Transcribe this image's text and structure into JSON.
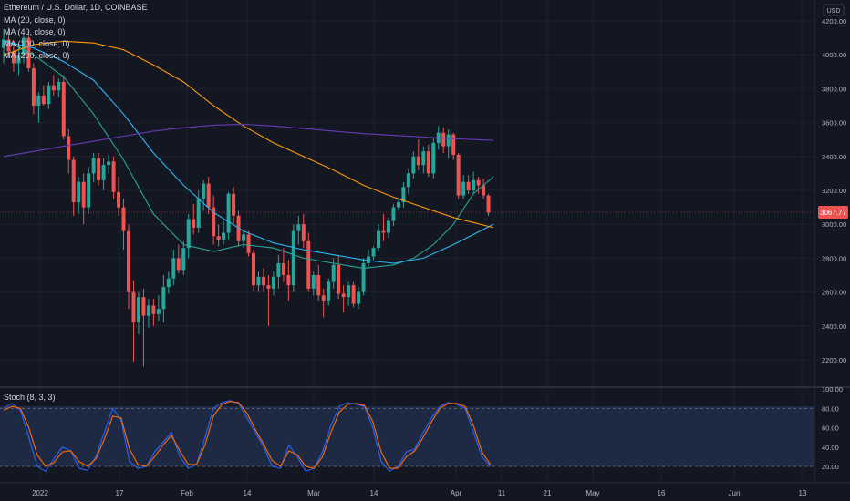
{
  "header": {
    "symbol_line": "Ethereum / U.S. Dollar, 1D, COINBASE",
    "currency": "USD"
  },
  "legend": [
    {
      "label": "MA (20, close, 0)",
      "color": "#26a69a"
    },
    {
      "label": "MA (40, close, 0)",
      "color": "#29b6f6"
    },
    {
      "label": "MA (100, close, 0)",
      "color": "#ff9800"
    },
    {
      "label": "MA (200, close, 0)",
      "color": "#673ab7"
    }
  ],
  "price_axis": {
    "ticks": [
      "4200.00",
      "4000.00",
      "3800.00",
      "3600.00",
      "3400.00",
      "3200.00",
      "3000.00",
      "2800.00",
      "2600.00",
      "2400.00",
      "2200.00"
    ],
    "last_price": "3067.77"
  },
  "stoch_panel": {
    "label": "Stoch (8, 3, 3)",
    "ticks": [
      "100.00",
      "80.00",
      "60.00",
      "40.00",
      "20.00"
    ]
  },
  "time_axis": {
    "labels": [
      "2022",
      "17",
      "Feb",
      "14",
      "Mar",
      "14",
      "Apr",
      "11",
      "21",
      "May",
      "16",
      "Jun",
      "13"
    ]
  },
  "colors": {
    "background": "#131722",
    "up": "#26a69a",
    "down": "#ef5350",
    "ma_short": "#29b6f6",
    "ma_mid": "#ff9800",
    "ma_long": "#673ab7",
    "stoch_k": "#2962ff",
    "stoch_d": "#ff6d00",
    "last_price_badge": "#ef5350"
  },
  "chart_data": {
    "type": "candlestick",
    "instrument": "Ethereum / U.S. Dollar",
    "interval": "1D",
    "exchange": "COINBASE",
    "ylim": [
      2100,
      4300
    ],
    "candles": [
      [
        4040,
        4150,
        3950,
        4090
      ],
      [
        4090,
        4160,
        3980,
        4020
      ],
      [
        4020,
        4080,
        3900,
        3950
      ],
      [
        3950,
        4050,
        3880,
        4000
      ],
      [
        4000,
        4120,
        3950,
        4100
      ],
      [
        4100,
        4140,
        3900,
        3920
      ],
      [
        3920,
        3950,
        3650,
        3700
      ],
      [
        3700,
        3780,
        3600,
        3760
      ],
      [
        3760,
        3820,
        3700,
        3710
      ],
      [
        3710,
        3840,
        3680,
        3820
      ],
      [
        3820,
        3880,
        3760,
        3790
      ],
      [
        3790,
        3860,
        3750,
        3840
      ],
      [
        3840,
        3880,
        3500,
        3520
      ],
      [
        3520,
        3560,
        3300,
        3380
      ],
      [
        3380,
        3400,
        3050,
        3130
      ],
      [
        3130,
        3280,
        3060,
        3250
      ],
      [
        3250,
        3300,
        3000,
        3100
      ],
      [
        3100,
        3340,
        3060,
        3300
      ],
      [
        3300,
        3420,
        3250,
        3390
      ],
      [
        3390,
        3420,
        3230,
        3260
      ],
      [
        3260,
        3390,
        3200,
        3350
      ],
      [
        3350,
        3410,
        3300,
        3370
      ],
      [
        3370,
        3400,
        3150,
        3190
      ],
      [
        3190,
        3280,
        3050,
        3100
      ],
      [
        3100,
        3150,
        2850,
        2960
      ],
      [
        2960,
        3000,
        2500,
        2600
      ],
      [
        2600,
        2670,
        2190,
        2420
      ],
      [
        2420,
        2600,
        2350,
        2570
      ],
      [
        2570,
        2620,
        2160,
        2460
      ],
      [
        2460,
        2560,
        2390,
        2520
      ],
      [
        2520,
        2560,
        2400,
        2470
      ],
      [
        2470,
        2580,
        2430,
        2500
      ],
      [
        2500,
        2700,
        2420,
        2630
      ],
      [
        2630,
        2720,
        2590,
        2680
      ],
      [
        2680,
        2850,
        2640,
        2800
      ],
      [
        2800,
        2880,
        2710,
        2730
      ],
      [
        2730,
        2900,
        2700,
        2860
      ],
      [
        2860,
        3060,
        2800,
        3030
      ],
      [
        3030,
        3120,
        2940,
        2980
      ],
      [
        2980,
        3200,
        2950,
        3150
      ],
      [
        3150,
        3260,
        3080,
        3240
      ],
      [
        3240,
        3280,
        3060,
        3100
      ],
      [
        3100,
        3170,
        2880,
        2930
      ],
      [
        2930,
        3000,
        2870,
        2910
      ],
      [
        2910,
        3020,
        2880,
        2950
      ],
      [
        2950,
        3190,
        2910,
        3180
      ],
      [
        3180,
        3220,
        3000,
        3050
      ],
      [
        3050,
        3080,
        2870,
        2900
      ],
      [
        2900,
        2960,
        2860,
        2940
      ],
      [
        2940,
        2960,
        2810,
        2830
      ],
      [
        2830,
        2850,
        2610,
        2640
      ],
      [
        2640,
        2720,
        2600,
        2690
      ],
      [
        2690,
        2740,
        2600,
        2640
      ],
      [
        2640,
        2700,
        2400,
        2620
      ],
      [
        2620,
        2720,
        2580,
        2690
      ],
      [
        2690,
        2820,
        2620,
        2770
      ],
      [
        2770,
        2860,
        2660,
        2700
      ],
      [
        2700,
        2790,
        2550,
        2640
      ],
      [
        2640,
        3000,
        2600,
        2960
      ],
      [
        2960,
        3050,
        2880,
        3000
      ],
      [
        3000,
        3060,
        2860,
        2900
      ],
      [
        2900,
        2950,
        2600,
        2620
      ],
      [
        2620,
        2720,
        2580,
        2700
      ],
      [
        2700,
        2760,
        2550,
        2580
      ],
      [
        2580,
        2620,
        2450,
        2550
      ],
      [
        2550,
        2680,
        2520,
        2660
      ],
      [
        2660,
        2800,
        2620,
        2760
      ],
      [
        2760,
        2820,
        2560,
        2590
      ],
      [
        2590,
        2640,
        2480,
        2570
      ],
      [
        2570,
        2660,
        2520,
        2640
      ],
      [
        2640,
        2660,
        2510,
        2530
      ],
      [
        2530,
        2630,
        2500,
        2600
      ],
      [
        2600,
        2800,
        2580,
        2770
      ],
      [
        2770,
        2850,
        2740,
        2810
      ],
      [
        2810,
        2870,
        2790,
        2860
      ],
      [
        2860,
        3000,
        2840,
        2960
      ],
      [
        2960,
        3060,
        2900,
        2950
      ],
      [
        2950,
        3040,
        2920,
        3020
      ],
      [
        3020,
        3120,
        2990,
        3100
      ],
      [
        3100,
        3160,
        3080,
        3130
      ],
      [
        3130,
        3250,
        3100,
        3220
      ],
      [
        3220,
        3330,
        3180,
        3300
      ],
      [
        3300,
        3430,
        3270,
        3400
      ],
      [
        3400,
        3500,
        3320,
        3350
      ],
      [
        3350,
        3460,
        3300,
        3430
      ],
      [
        3430,
        3470,
        3280,
        3300
      ],
      [
        3300,
        3510,
        3270,
        3480
      ],
      [
        3480,
        3580,
        3440,
        3540
      ],
      [
        3540,
        3570,
        3420,
        3460
      ],
      [
        3460,
        3560,
        3390,
        3530
      ],
      [
        3530,
        3540,
        3380,
        3410
      ],
      [
        3410,
        3420,
        3150,
        3170
      ],
      [
        3170,
        3290,
        3150,
        3250
      ],
      [
        3250,
        3290,
        3180,
        3200
      ],
      [
        3200,
        3310,
        3180,
        3260
      ],
      [
        3260,
        3280,
        3180,
        3230
      ],
      [
        3230,
        3270,
        3150,
        3170
      ],
      [
        3170,
        3180,
        3050,
        3068
      ]
    ],
    "series": [
      {
        "name": "MA (20, close, 0)",
        "type": "line",
        "values": [
          [
            0,
            4090
          ],
          [
            6,
            4000
          ],
          [
            12,
            3870
          ],
          [
            18,
            3650
          ],
          [
            24,
            3380
          ],
          [
            30,
            3060
          ],
          [
            36,
            2880
          ],
          [
            42,
            2840
          ],
          [
            48,
            2880
          ],
          [
            54,
            2860
          ],
          [
            60,
            2800
          ],
          [
            66,
            2770
          ],
          [
            72,
            2740
          ],
          [
            78,
            2760
          ],
          [
            82,
            2800
          ],
          [
            86,
            2880
          ],
          [
            90,
            3000
          ],
          [
            94,
            3180
          ],
          [
            98,
            3280
          ]
        ]
      },
      {
        "name": "MA (40, close, 0)",
        "type": "line",
        "values": [
          [
            0,
            4080
          ],
          [
            6,
            4040
          ],
          [
            12,
            3960
          ],
          [
            18,
            3850
          ],
          [
            24,
            3650
          ],
          [
            30,
            3420
          ],
          [
            36,
            3230
          ],
          [
            42,
            3070
          ],
          [
            48,
            2960
          ],
          [
            54,
            2890
          ],
          [
            60,
            2850
          ],
          [
            66,
            2820
          ],
          [
            72,
            2790
          ],
          [
            78,
            2770
          ],
          [
            84,
            2800
          ],
          [
            90,
            2880
          ],
          [
            94,
            2940
          ],
          [
            98,
            3000
          ]
        ]
      },
      {
        "name": "MA (100, close, 0)",
        "type": "line",
        "values": [
          [
            0,
            4000
          ],
          [
            6,
            4060
          ],
          [
            12,
            4080
          ],
          [
            18,
            4070
          ],
          [
            24,
            4030
          ],
          [
            30,
            3940
          ],
          [
            36,
            3840
          ],
          [
            42,
            3700
          ],
          [
            48,
            3580
          ],
          [
            54,
            3480
          ],
          [
            60,
            3400
          ],
          [
            66,
            3320
          ],
          [
            72,
            3230
          ],
          [
            78,
            3160
          ],
          [
            84,
            3100
          ],
          [
            90,
            3040
          ],
          [
            94,
            3010
          ],
          [
            98,
            2980
          ]
        ]
      },
      {
        "name": "MA (200, close, 0)",
        "type": "line",
        "values": [
          [
            0,
            3400
          ],
          [
            6,
            3430
          ],
          [
            12,
            3460
          ],
          [
            18,
            3490
          ],
          [
            24,
            3520
          ],
          [
            30,
            3550
          ],
          [
            36,
            3570
          ],
          [
            42,
            3585
          ],
          [
            48,
            3590
          ],
          [
            54,
            3580
          ],
          [
            60,
            3565
          ],
          [
            66,
            3550
          ],
          [
            72,
            3535
          ],
          [
            78,
            3525
          ],
          [
            84,
            3515
          ],
          [
            90,
            3505
          ],
          [
            94,
            3500
          ],
          [
            98,
            3495
          ]
        ]
      }
    ],
    "stochastic": {
      "label": "Stoch (8, 3, 3)",
      "ylim": [
        0,
        100
      ],
      "bands": [
        20,
        80
      ],
      "k": [
        80,
        85,
        78,
        50,
        20,
        15,
        28,
        40,
        36,
        18,
        16,
        30,
        55,
        80,
        68,
        25,
        18,
        20,
        35,
        45,
        55,
        30,
        18,
        22,
        50,
        80,
        86,
        88,
        85,
        70,
        55,
        40,
        20,
        18,
        42,
        30,
        15,
        18,
        35,
        62,
        82,
        86,
        84,
        82,
        60,
        25,
        15,
        20,
        35,
        38,
        55,
        70,
        82,
        86,
        84,
        80,
        55,
        30,
        20
      ],
      "d": [
        78,
        82,
        80,
        60,
        32,
        20,
        24,
        35,
        36,
        25,
        20,
        28,
        48,
        72,
        70,
        38,
        22,
        20,
        30,
        42,
        52,
        36,
        22,
        22,
        42,
        72,
        84,
        87,
        86,
        75,
        58,
        43,
        26,
        20,
        36,
        32,
        20,
        18,
        30,
        55,
        76,
        84,
        85,
        83,
        66,
        35,
        18,
        18,
        30,
        36,
        50,
        66,
        80,
        85,
        85,
        82,
        62,
        35,
        22
      ]
    },
    "x_tick_labels": [
      "2022",
      "17",
      "Feb",
      "14",
      "Mar",
      "14",
      "Apr",
      "11",
      "21",
      "May",
      "16",
      "Jun",
      "13"
    ],
    "y_tick_labels": [
      "4200.00",
      "4000.00",
      "3800.00",
      "3600.00",
      "3400.00",
      "3200.00",
      "3000.00",
      "2800.00",
      "2600.00",
      "2400.00",
      "2200.00"
    ],
    "last_price": 3067.77
  }
}
